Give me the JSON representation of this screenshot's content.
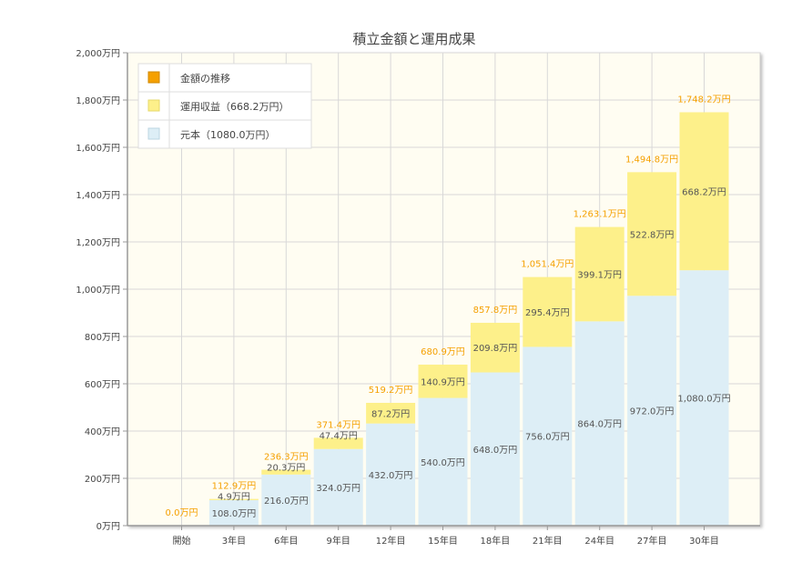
{
  "chart_data": {
    "type": "bar",
    "stacked": true,
    "title": "積立金額と運用成果",
    "categories": [
      "開始",
      "3年目",
      "6年目",
      "9年目",
      "12年目",
      "15年目",
      "18年目",
      "21年目",
      "24年目",
      "27年目",
      "30年目"
    ],
    "series": [
      {
        "name": "元本（1080.0万円）",
        "color": "#ddeef6",
        "values": [
          0,
          108.0,
          216.0,
          324.0,
          432.0,
          540.0,
          648.0,
          756.0,
          864.0,
          972.0,
          1080.0
        ],
        "labels": [
          "",
          "108.0万円",
          "216.0万円",
          "324.0万円",
          "432.0万円",
          "540.0万円",
          "648.0万円",
          "756.0万円",
          "864.0万円",
          "972.0万円",
          "1,080.0万円"
        ]
      },
      {
        "name": "運用収益（668.2万円）",
        "color": "#fdf08a",
        "values": [
          0,
          4.9,
          20.3,
          47.4,
          87.2,
          140.9,
          209.8,
          295.4,
          399.1,
          522.8,
          668.2
        ],
        "labels": [
          "",
          "4.9万円",
          "20.3万円",
          "47.4万円",
          "87.2万円",
          "140.9万円",
          "209.8万円",
          "295.4万円",
          "399.1万円",
          "522.8万円",
          "668.2万円"
        ]
      }
    ],
    "line": {
      "name": "金額の推移",
      "color": "#f5a000",
      "values": [
        0.0,
        112.9,
        236.3,
        371.4,
        519.2,
        680.9,
        857.8,
        1051.4,
        1263.1,
        1494.8,
        1748.2
      ],
      "labels": [
        "0.0万円",
        "112.9万円",
        "236.3万円",
        "371.4万円",
        "519.2万円",
        "680.9万円",
        "857.8万円",
        "1,051.4万円",
        "1,263.1万円",
        "1,494.8万円",
        "1,748.2万円"
      ]
    },
    "ylim": [
      0,
      2000
    ],
    "yticks": [
      0,
      200,
      400,
      600,
      800,
      1000,
      1200,
      1400,
      1600,
      1800,
      2000
    ],
    "ytick_labels": [
      "0万円",
      "200万円",
      "400万円",
      "600万円",
      "800万円",
      "1,000万円",
      "1,200万円",
      "1,400万円",
      "1,600万円",
      "1,800万円",
      "2,000万円"
    ],
    "grid": true,
    "legend_position": "top-left",
    "colors": {
      "plot_background": "#fffdf2",
      "grid": "#d8d8d8",
      "axis": "#999999",
      "title": "#444444",
      "tick_text": "#444444",
      "bar_label_text": "#555555"
    }
  }
}
